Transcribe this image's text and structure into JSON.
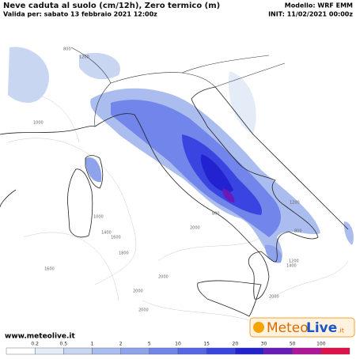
{
  "header": {
    "title": "Neve caduta al suolo (cm/12h), Zero termico (m)",
    "valid": "Valida per: sabato 13 febbraio 2021 12:00z",
    "model": "Modello: WRF EMM",
    "init": "INIT: 11/02/2021 00:00z"
  },
  "footer": {
    "website": "www.meteolive.it",
    "logo": {
      "meteo": "Meteo",
      "live": "Live",
      "tld": ".it"
    }
  },
  "colorbar": {
    "ticks": [
      0.2,
      0.5,
      1,
      2,
      5,
      10,
      15,
      20,
      30,
      50,
      100
    ],
    "colors": [
      "#ffffff",
      "#e4ecf8",
      "#c8d6f2",
      "#aabdee",
      "#8ea3ec",
      "#7285ea",
      "#5566e6",
      "#3a44e0",
      "#2222d0",
      "#6a1ab8",
      "#b0169a",
      "#e0104a"
    ]
  },
  "contour_labels": [
    "1000",
    "800",
    "1200",
    "1000",
    "1400",
    "1600",
    "1800",
    "2000",
    "2000",
    "2000",
    "1200",
    "800",
    "800",
    "1200",
    "1400",
    "2000",
    "1600",
    "2000"
  ]
}
